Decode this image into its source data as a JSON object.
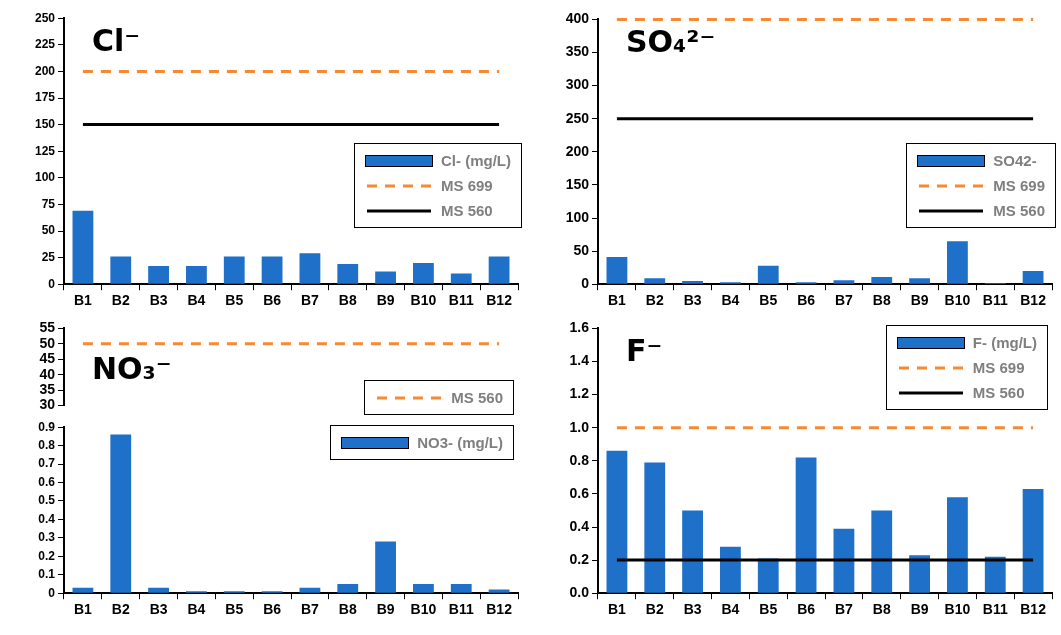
{
  "chart_data": [
    {
      "type": "bar",
      "title": "Cl⁻",
      "categories": [
        "B1",
        "B2",
        "B3",
        "B4",
        "B5",
        "B6",
        "B7",
        "B8",
        "B9",
        "B10",
        "B11",
        "B12"
      ],
      "ylim": [
        0,
        250
      ],
      "yticks": [
        0,
        25,
        50,
        75,
        100,
        125,
        150,
        175,
        200,
        225,
        250
      ],
      "legend": "right",
      "marker": "none",
      "series": [
        {
          "name": "Cl- (mg/L)",
          "color": "#1f70c8",
          "values": [
            69,
            26,
            17,
            17,
            26,
            26,
            29,
            19,
            12,
            20,
            10,
            26
          ]
        },
        {
          "name": "MS 699",
          "type": "line",
          "line_style": "dashed",
          "color": "#f58a33",
          "values": [
            200,
            200,
            200,
            200,
            200,
            200,
            200,
            200,
            200,
            200,
            200,
            200
          ]
        },
        {
          "name": "MS 560",
          "type": "line",
          "line_style": "solid",
          "color": "#000000",
          "values": [
            150,
            150,
            150,
            150,
            150,
            150,
            150,
            150,
            150,
            150,
            150,
            150
          ]
        }
      ]
    },
    {
      "type": "bar",
      "title": "SO₄²⁻",
      "categories": [
        "B1",
        "B2",
        "B3",
        "B4",
        "B5",
        "B6",
        "B7",
        "B8",
        "B9",
        "B10",
        "B11",
        "B12"
      ],
      "ylim": [
        0,
        400
      ],
      "yticks": [
        0,
        50,
        100,
        150,
        200,
        250,
        300,
        350,
        400
      ],
      "legend": "right",
      "marker": "none",
      "series": [
        {
          "name": "SO42-",
          "color": "#1f70c8",
          "values": [
            41,
            9,
            5,
            3,
            28,
            3,
            6,
            11,
            9,
            65,
            2,
            20
          ]
        },
        {
          "name": "MS 699",
          "type": "line",
          "line_style": "dashed",
          "color": "#f58a33",
          "values": [
            400,
            400,
            400,
            400,
            400,
            400,
            400,
            400,
            400,
            400,
            400,
            400
          ]
        },
        {
          "name": "MS 560",
          "type": "line",
          "line_style": "solid",
          "color": "#000000",
          "values": [
            250,
            250,
            250,
            250,
            250,
            250,
            250,
            250,
            250,
            250,
            250,
            250
          ]
        }
      ]
    },
    {
      "type": "line",
      "title": "NO₃⁻",
      "categories": [
        null,
        null,
        null,
        null,
        null,
        null,
        null,
        null,
        null,
        null,
        null,
        null
      ],
      "ylim": [
        30,
        55
      ],
      "yticks": [
        30,
        35,
        40,
        45,
        50,
        55
      ],
      "tick_labels": "y",
      "legend": "bottom right",
      "marker": "none",
      "series": [
        {
          "name": "MS 560",
          "line_style": "dashed",
          "color": "#f58a33",
          "values": [
            50,
            50,
            50,
            50,
            50,
            50,
            50,
            50,
            50,
            50,
            50,
            50
          ]
        }
      ]
    },
    {
      "type": "bar",
      "categories": [
        "B1",
        "B2",
        "B3",
        "B4",
        "B5",
        "B6",
        "B7",
        "B8",
        "B9",
        "B10",
        "B11",
        "B12"
      ],
      "ylim": [
        0,
        0.9
      ],
      "yticks": [
        0,
        0.1,
        0.2,
        0.3,
        0.4,
        0.5,
        0.6,
        0.7,
        0.8,
        0.9
      ],
      "legend": "top right",
      "series": [
        {
          "name": "NO3- (mg/L)",
          "color": "#1f70c8",
          "values": [
            0.03,
            0.86,
            0.03,
            0.01,
            0.01,
            0.01,
            0.03,
            0.05,
            0.28,
            0.05,
            0.05,
            0.02
          ]
        }
      ]
    },
    {
      "type": "bar",
      "title": "F⁻",
      "categories": [
        "B1",
        "B2",
        "B3",
        "B4",
        "B5",
        "B6",
        "B7",
        "B8",
        "B9",
        "B10",
        "B11",
        "B12"
      ],
      "ylim": [
        0,
        1.6
      ],
      "yticks": [
        {
          "value": 0,
          "label": "0.0"
        },
        0.2,
        0.4,
        0.6,
        0.8,
        {
          "value": 1,
          "label": "1.0"
        },
        1.2,
        1.4,
        1.6
      ],
      "legend": "top right",
      "marker": "none",
      "series": [
        {
          "name": "F- (mg/L)",
          "color": "#1f70c8",
          "values": [
            0.86,
            0.79,
            0.5,
            0.28,
            0.21,
            0.82,
            0.39,
            0.5,
            0.23,
            0.58,
            0.22,
            0.63
          ]
        },
        {
          "name": "MS 699",
          "type": "line",
          "line_style": "dashed",
          "color": "#f58a33",
          "values": [
            1,
            1,
            1,
            1,
            1,
            1,
            1,
            1,
            1,
            1,
            1,
            1
          ]
        },
        {
          "name": "MS 560",
          "type": "line",
          "line_style": "solid",
          "color": "#000000",
          "values": [
            0.2,
            0.2,
            0.2,
            0.2,
            0.2,
            0.2,
            0.2,
            0.2,
            0.2,
            0.2,
            0.2,
            0.2
          ]
        }
      ]
    }
  ]
}
